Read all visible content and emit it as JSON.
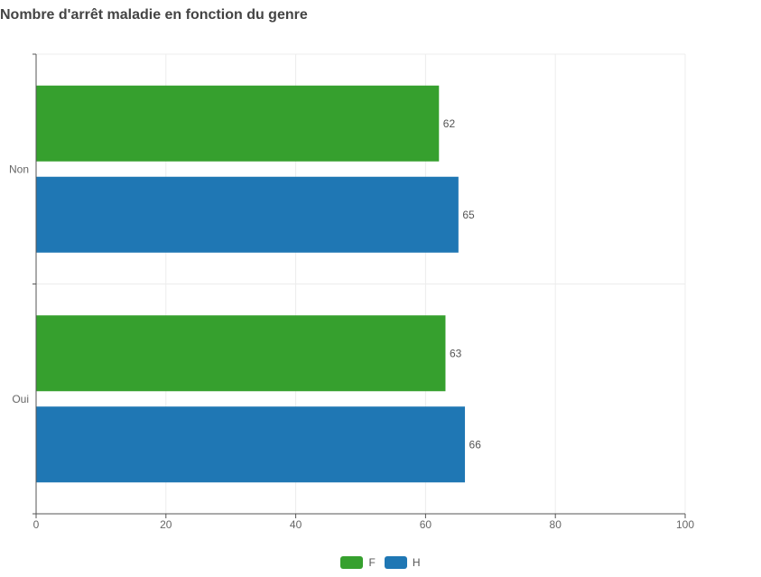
{
  "title": "Nombre d'arrêt maladie en fonction du genre",
  "chart_data": {
    "type": "bar",
    "orientation": "horizontal",
    "title": "Nombre d'arrêt maladie en fonction du genre",
    "categories": [
      "Non",
      "Oui"
    ],
    "series": [
      {
        "name": "F",
        "color": "#36a02e",
        "values": [
          62,
          63
        ]
      },
      {
        "name": "H",
        "color": "#1f77b4",
        "values": [
          65,
          66
        ]
      }
    ],
    "xlim": [
      0,
      100
    ],
    "xticks": [
      0,
      20,
      40,
      60,
      80,
      100
    ],
    "grid": true,
    "data_labels": true,
    "legend_position": "bottom-center"
  }
}
